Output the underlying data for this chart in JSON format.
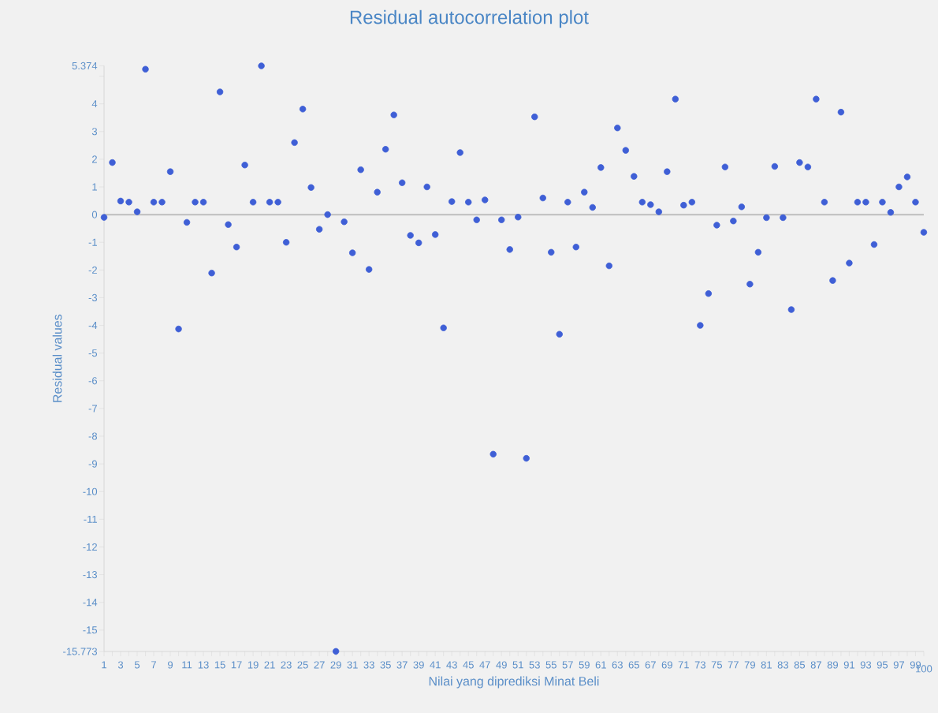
{
  "chart_data": {
    "type": "scatter",
    "title": "Residual autocorrelation plot",
    "xlabel": "Nilai yang diprediksi Minat Beli",
    "ylabel": "Residual values",
    "x": [
      1,
      2,
      3,
      4,
      5,
      6,
      7,
      8,
      9,
      10,
      11,
      12,
      13,
      14,
      15,
      16,
      17,
      18,
      19,
      20,
      21,
      22,
      23,
      24,
      25,
      26,
      27,
      28,
      29,
      30,
      31,
      32,
      33,
      34,
      35,
      36,
      37,
      38,
      39,
      40,
      41,
      42,
      43,
      44,
      45,
      46,
      47,
      48,
      49,
      50,
      51,
      52,
      53,
      54,
      55,
      56,
      57,
      58,
      59,
      60,
      61,
      62,
      63,
      64,
      65,
      66,
      67,
      68,
      69,
      70,
      71,
      72,
      73,
      74,
      75,
      76,
      77,
      78,
      79,
      80,
      81,
      82,
      83,
      84,
      85,
      86,
      87,
      88,
      89,
      90,
      91,
      92,
      93,
      94,
      95,
      96,
      97,
      98,
      99,
      100
    ],
    "series": [
      {
        "color": "#3f5fd6",
        "values": [
          -0.1,
          1.88,
          0.49,
          0.45,
          0.1,
          5.25,
          0.45,
          0.45,
          1.55,
          -4.13,
          -0.28,
          0.45,
          0.45,
          -2.11,
          4.43,
          -0.36,
          -1.17,
          1.79,
          0.45,
          5.37,
          0.45,
          0.45,
          -1.0,
          2.6,
          3.81,
          0.98,
          -0.53,
          0.0,
          -15.77,
          -0.26,
          -1.38,
          1.62,
          -1.98,
          0.81,
          2.36,
          3.6,
          1.15,
          -0.75,
          -1.02,
          1.0,
          -0.72,
          -4.09,
          0.47,
          2.24,
          0.45,
          -0.19,
          0.53,
          -8.65,
          -0.19,
          -1.26,
          -0.09,
          -8.8,
          3.53,
          0.6,
          -1.36,
          -4.32,
          0.45,
          -1.17,
          0.81,
          0.26,
          1.7,
          -1.85,
          3.13,
          2.32,
          1.38,
          0.45,
          0.36,
          0.1,
          1.55,
          4.17,
          0.34,
          0.45,
          -4.0,
          -2.85,
          -0.38,
          1.72,
          -0.23,
          0.28,
          -2.51,
          -1.36,
          -0.11,
          1.74,
          -0.11,
          -3.43,
          1.88,
          1.72,
          4.17,
          0.45,
          -2.38,
          3.7,
          -1.75,
          0.45,
          0.45,
          -1.08,
          0.45,
          0.08,
          1.0,
          1.36,
          0.45,
          -0.64
        ]
      }
    ],
    "xlim": [
      1,
      100
    ],
    "ylim": [
      -15.773,
      5.374
    ],
    "xticks": [
      1,
      {
        "value": 2,
        "label": null
      },
      3,
      {
        "value": 4,
        "label": null
      },
      5,
      {
        "value": 6,
        "label": null
      },
      7,
      {
        "value": 8,
        "label": null
      },
      9,
      {
        "value": 10,
        "label": null
      },
      11,
      {
        "value": 12,
        "label": null
      },
      13,
      {
        "value": 14,
        "label": null
      },
      15,
      {
        "value": 16,
        "label": null
      },
      17,
      {
        "value": 18,
        "label": null
      },
      19,
      {
        "value": 20,
        "label": null
      },
      21,
      {
        "value": 22,
        "label": null
      },
      23,
      {
        "value": 24,
        "label": null
      },
      25,
      {
        "value": 26,
        "label": null
      },
      27,
      {
        "value": 28,
        "label": null
      },
      29,
      {
        "value": 30,
        "label": null
      },
      31,
      {
        "value": 32,
        "label": null
      },
      33,
      {
        "value": 34,
        "label": null
      },
      35,
      {
        "value": 36,
        "label": null
      },
      37,
      {
        "value": 38,
        "label": null
      },
      39,
      {
        "value": 40,
        "label": null
      },
      41,
      {
        "value": 42,
        "label": null
      },
      43,
      {
        "value": 44,
        "label": null
      },
      45,
      {
        "value": 46,
        "label": null
      },
      47,
      {
        "value": 48,
        "label": null
      },
      49,
      {
        "value": 50,
        "label": null
      },
      51,
      {
        "value": 52,
        "label": null
      },
      53,
      {
        "value": 54,
        "label": null
      },
      55,
      {
        "value": 56,
        "label": null
      },
      57,
      {
        "value": 58,
        "label": null
      },
      59,
      {
        "value": 60,
        "label": null
      },
      61,
      {
        "value": 62,
        "label": null
      },
      63,
      {
        "value": 64,
        "label": null
      },
      65,
      {
        "value": 66,
        "label": null
      },
      67,
      {
        "value": 68,
        "label": null
      },
      69,
      {
        "value": 70,
        "label": null
      },
      71,
      {
        "value": 72,
        "label": null
      },
      73,
      {
        "value": 74,
        "label": null
      },
      75,
      {
        "value": 76,
        "label": null
      },
      77,
      {
        "value": 78,
        "label": null
      },
      79,
      {
        "value": 80,
        "label": null
      },
      81,
      {
        "value": 82,
        "label": null
      },
      83,
      {
        "value": 84,
        "label": null
      },
      85,
      {
        "value": 86,
        "label": null
      },
      87,
      {
        "value": 88,
        "label": null
      },
      89,
      {
        "value": 90,
        "label": null
      },
      91,
      {
        "value": 92,
        "label": null
      },
      93,
      {
        "value": 94,
        "label": null
      },
      95,
      {
        "value": 96,
        "label": null
      },
      97,
      {
        "value": 98,
        "label": null
      },
      99,
      100
    ],
    "yticks": [
      -15.773,
      -15,
      -14,
      -13,
      -12,
      -11,
      -10,
      -9,
      -8,
      -7,
      -6,
      -5,
      -4,
      -3,
      -2,
      -1,
      0,
      1,
      2,
      3,
      4,
      {
        "value": 5,
        "label": null
      },
      5.374
    ],
    "ref_lines": [
      {
        "axis": "y",
        "value": 0,
        "color": "#c4c4c4"
      }
    ],
    "marker": "circle",
    "grid": false
  }
}
